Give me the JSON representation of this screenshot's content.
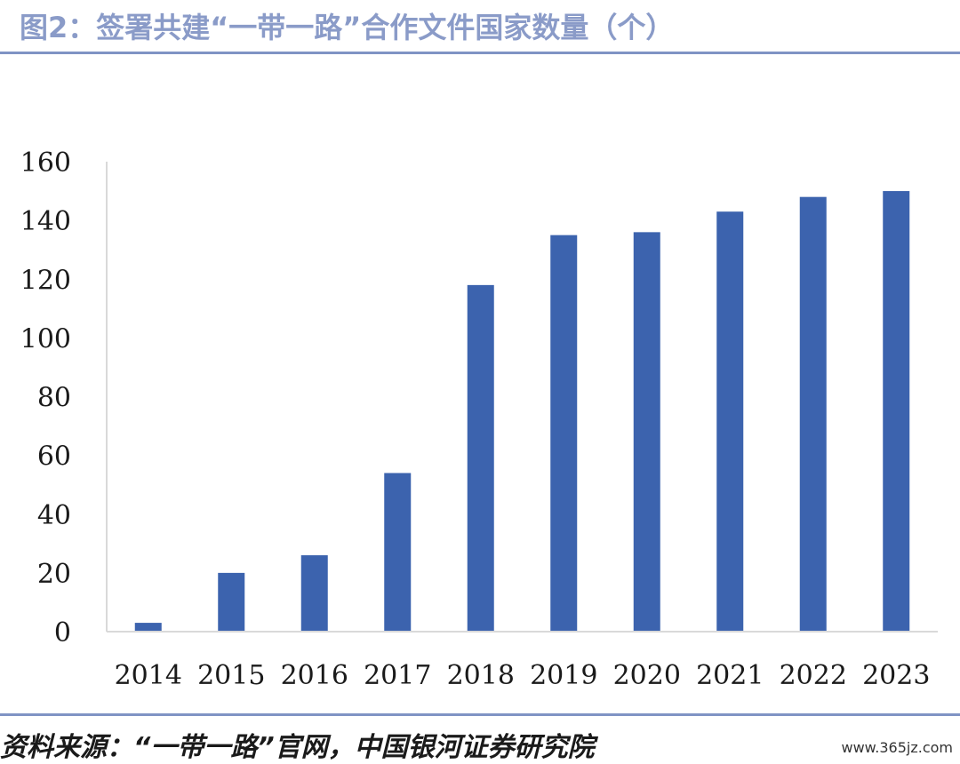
{
  "header": {
    "title": "图2：签署共建“一带一路”合作文件国家数量（个）"
  },
  "footer": {
    "source": "资料来源：“一带一路”官网，中国银河证券研究院",
    "watermark": "www.365jz.com"
  },
  "chart_data": {
    "type": "bar",
    "title": "图2：签署共建“一带一路”合作文件国家数量（个）",
    "categories": [
      "2014",
      "2015",
      "2016",
      "2017",
      "2018",
      "2019",
      "2020",
      "2021",
      "2022",
      "2023"
    ],
    "values": [
      3,
      20,
      26,
      54,
      118,
      135,
      136,
      143,
      148,
      150
    ],
    "ylim": [
      0,
      160
    ],
    "yticks": [
      0,
      20,
      40,
      60,
      80,
      100,
      120,
      140,
      160
    ],
    "xlabel": "",
    "ylabel": "",
    "grid": false,
    "bar_color": "#3c63ae",
    "axis_color": "#d9d9d9"
  }
}
